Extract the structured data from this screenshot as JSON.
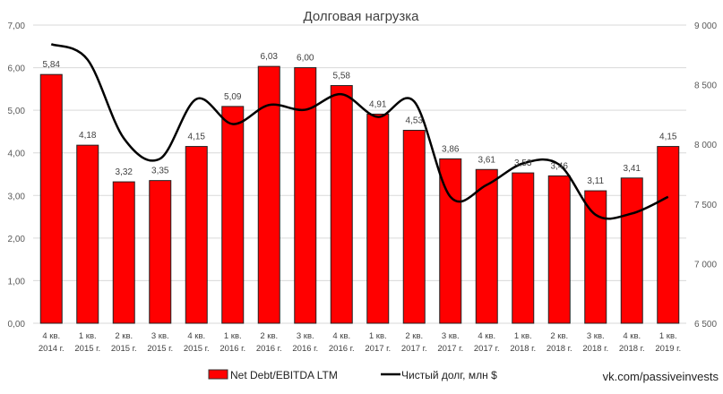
{
  "chart_data": {
    "type": "bar+line",
    "title": "Долговая нагрузка",
    "categories": [
      [
        "4 кв.",
        "2014 г."
      ],
      [
        "1 кв.",
        "2015 г."
      ],
      [
        "2 кв.",
        "2015 г."
      ],
      [
        "3 кв.",
        "2015 г."
      ],
      [
        "4 кв.",
        "2015 г."
      ],
      [
        "1 кв.",
        "2016 г."
      ],
      [
        "2 кв.",
        "2016 г."
      ],
      [
        "3 кв.",
        "2016 г."
      ],
      [
        "4 кв.",
        "2016 г."
      ],
      [
        "1 кв.",
        "2017 г."
      ],
      [
        "2 кв.",
        "2017 г."
      ],
      [
        "3 кв.",
        "2017 г."
      ],
      [
        "4 кв.",
        "2017 г."
      ],
      [
        "1 кв.",
        "2018 г."
      ],
      [
        "2 кв.",
        "2018 г."
      ],
      [
        "3 кв.",
        "2018 г."
      ],
      [
        "4 кв.",
        "2018 г."
      ],
      [
        "1 кв.",
        "2019 г."
      ]
    ],
    "series": [
      {
        "name": "Net Debt/EBITDA LTM",
        "type": "bar",
        "axis": "left",
        "color": "#ff0000",
        "values": [
          5.84,
          4.18,
          3.32,
          3.35,
          4.15,
          5.09,
          6.03,
          6.0,
          5.58,
          4.91,
          4.53,
          3.86,
          3.61,
          3.53,
          3.46,
          3.11,
          3.41,
          4.15
        ],
        "labels": [
          "5,84",
          "4,18",
          "3,32",
          "3,35",
          "4,15",
          "5,09",
          "6,03",
          "6,00",
          "5,58",
          "4,91",
          "4,53",
          "3,86",
          "3,61",
          "3,53",
          "3,46",
          "3,11",
          "3,41",
          "4,15"
        ]
      },
      {
        "name": "Чистый долг, млн $",
        "type": "line",
        "axis": "right",
        "color": "#000000",
        "smooth": true,
        "values": [
          8840,
          8710,
          8050,
          7880,
          8380,
          8170,
          8330,
          8290,
          8420,
          8230,
          8360,
          7560,
          7660,
          7840,
          7830,
          7410,
          7420,
          7560
        ]
      }
    ],
    "left_axis": {
      "ylim": [
        0,
        7
      ],
      "ticks": [
        "0,00",
        "1,00",
        "2,00",
        "3,00",
        "4,00",
        "5,00",
        "6,00",
        "7,00"
      ]
    },
    "right_axis": {
      "ylim": [
        6500,
        9000
      ],
      "ticks": [
        "6 500",
        "7 000",
        "7 500",
        "8 000",
        "8 500",
        "9 000"
      ]
    },
    "grid": true,
    "legend": "bottom"
  },
  "watermark": "vk.com/passiveinvests"
}
